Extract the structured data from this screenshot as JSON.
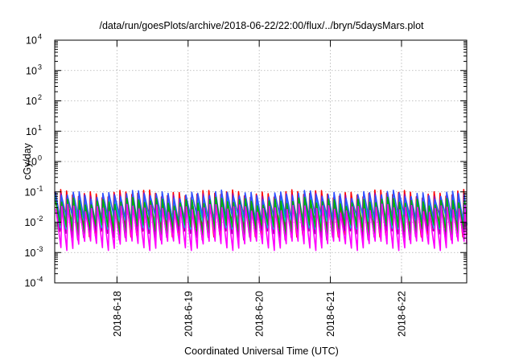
{
  "chart_data": {
    "type": "line",
    "title": "/data/run/goesPlots/archive/2018-06-22/22:00/flux/../bryn/5daysMars.plot",
    "xlabel": "Coordinated Universal Time (UTC)",
    "ylabel": "cGy/day",
    "yscale": "log",
    "ylim": [
      0.0001,
      10000
    ],
    "xlim": [
      "2018-06-17 03:00",
      "2018-06-22 22:00"
    ],
    "grid": true,
    "legend": "none",
    "x_ticks": [
      "2018-6-18",
      "2018-6-19",
      "2018-6-20",
      "2018-6-21",
      "2018-6-22"
    ],
    "y_ticks": [
      {
        "base": "10",
        "exp": "-4"
      },
      {
        "base": "10",
        "exp": "-3"
      },
      {
        "base": "10",
        "exp": "-2"
      },
      {
        "base": "10",
        "exp": "-1"
      },
      {
        "base": "10",
        "exp": "0"
      },
      {
        "base": "10",
        "exp": "1"
      },
      {
        "base": "10",
        "exp": "2"
      },
      {
        "base": "10",
        "exp": "3"
      },
      {
        "base": "10",
        "exp": "4"
      }
    ],
    "cycles_per_day": 12,
    "series": [
      {
        "color": "#ff0000",
        "peak": 0.09,
        "trough": 0.005
      },
      {
        "color": "#a000a0",
        "peak": 0.07,
        "trough": 0.004
      },
      {
        "color": "#00c8c8",
        "peak": 0.06,
        "trough": 0.009
      },
      {
        "color": "#3050ff",
        "peak": 0.085,
        "trough": 0.012
      },
      {
        "color": "#00b000",
        "peak": 0.05,
        "trough": 0.006
      },
      {
        "color": "#ff00ff",
        "peak": 0.03,
        "trough": 0.0018
      }
    ]
  }
}
